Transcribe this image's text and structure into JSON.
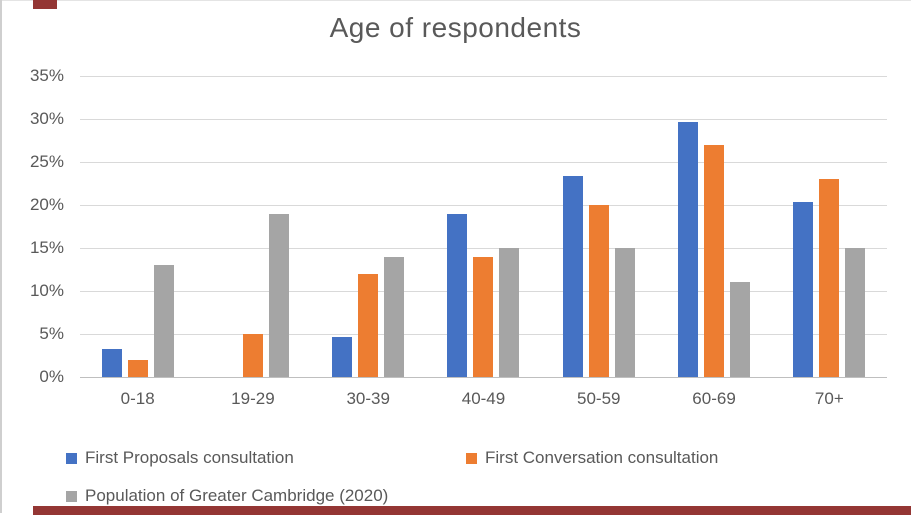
{
  "title": "Age of respondents",
  "chart_data": {
    "type": "bar",
    "title": "Age of respondents",
    "categories": [
      "0-18",
      "19-29",
      "30-39",
      "40-49",
      "50-59",
      "60-69",
      "70+"
    ],
    "series": [
      {
        "name": "First Proposals consultation",
        "color": "#4472C4",
        "values": [
          3.2,
          0,
          4.7,
          18.9,
          23.4,
          29.6,
          20.4
        ]
      },
      {
        "name": "First Conversation consultation",
        "color": "#ED7D31",
        "values": [
          2,
          5,
          12,
          14,
          20,
          27,
          23
        ]
      },
      {
        "name": "Population of Greater Cambridge (2020)",
        "color": "#A5A5A5",
        "values": [
          13,
          19,
          14,
          15,
          15,
          11,
          15
        ]
      }
    ],
    "xlabel": "",
    "ylabel": "",
    "ylim": [
      0,
      35
    ],
    "y_tick_step": 5,
    "y_tick_labels": [
      "0%",
      "5%",
      "10%",
      "15%",
      "20%",
      "25%",
      "30%",
      "35%"
    ],
    "grid": true,
    "legend_position": "bottom"
  },
  "colors": {
    "axis_text": "#595959",
    "gridline": "#D9D9D9",
    "axis_line": "#BFBFBF",
    "panel_border": "#CFCFCF",
    "accent": "#943634",
    "background": "#FFFFFF"
  }
}
